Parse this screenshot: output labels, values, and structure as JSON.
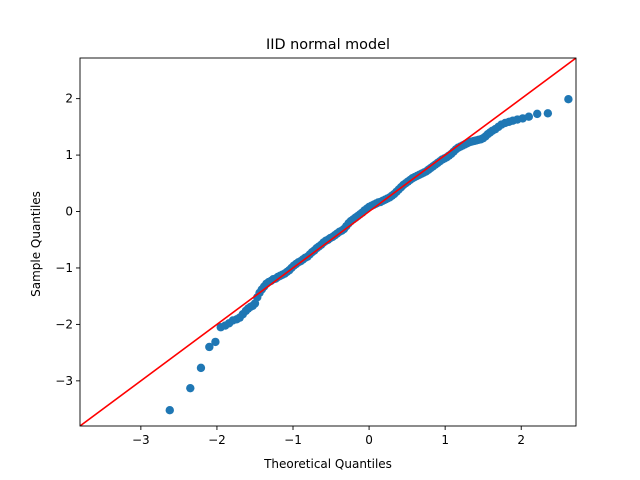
{
  "chart_data": {
    "type": "scatter",
    "title": "IID normal model",
    "xlabel": "Theoretical Quantiles",
    "ylabel": "Sample Quantiles",
    "xlim": [
      -3.8,
      2.72
    ],
    "ylim": [
      -3.8,
      2.72
    ],
    "xticks": [
      -3,
      -2,
      -1,
      0,
      1,
      2
    ],
    "yticks": [
      -3,
      -2,
      -1,
      0,
      1,
      2
    ],
    "grid": false,
    "colors": {
      "points": "#1f77b4",
      "reference_line": "#ff0000"
    },
    "series": [
      {
        "kind": "points",
        "x": [
          -2.62,
          -2.35,
          -2.21,
          -2.1,
          -2.02,
          -1.95,
          -1.89,
          -1.84,
          -1.79,
          -1.74,
          -1.7,
          -1.66,
          -1.62,
          -1.59,
          -1.56,
          -1.53,
          -1.5,
          -1.47,
          -1.44,
          -1.41,
          -1.38,
          -1.35,
          -1.32,
          -1.29,
          -1.26,
          -1.23,
          -1.2,
          -1.17,
          -1.14,
          -1.11,
          -1.08,
          -1.05,
          -1.02,
          -0.99,
          -0.96,
          -0.93,
          -0.9,
          -0.87,
          -0.84,
          -0.81,
          -0.78,
          -0.75,
          -0.72,
          -0.69,
          -0.66,
          -0.63,
          -0.6,
          -0.57,
          -0.54,
          -0.51,
          -0.48,
          -0.45,
          -0.42,
          -0.39,
          -0.36,
          -0.33,
          -0.3,
          -0.27,
          -0.24,
          -0.21,
          -0.18,
          -0.15,
          -0.12,
          -0.09,
          -0.06,
          -0.03,
          0.0,
          0.03,
          0.06,
          0.09,
          0.12,
          0.15,
          0.18,
          0.21,
          0.24,
          0.27,
          0.3,
          0.33,
          0.36,
          0.39,
          0.42,
          0.45,
          0.48,
          0.51,
          0.54,
          0.57,
          0.6,
          0.63,
          0.66,
          0.69,
          0.72,
          0.75,
          0.78,
          0.81,
          0.84,
          0.87,
          0.9,
          0.93,
          0.96,
          0.99,
          1.02,
          1.05,
          1.08,
          1.11,
          1.14,
          1.17,
          1.2,
          1.23,
          1.26,
          1.29,
          1.32,
          1.35,
          1.38,
          1.41,
          1.44,
          1.47,
          1.5,
          1.53,
          1.56,
          1.59,
          1.62,
          1.66,
          1.7,
          1.74,
          1.79,
          1.84,
          1.89,
          1.95,
          2.02,
          2.1,
          2.21,
          2.35,
          2.62
        ],
        "y": [
          -3.52,
          -3.13,
          -2.77,
          -2.4,
          -2.31,
          -2.05,
          -2.02,
          -1.98,
          -1.93,
          -1.91,
          -1.88,
          -1.82,
          -1.76,
          -1.72,
          -1.69,
          -1.67,
          -1.63,
          -1.52,
          -1.44,
          -1.38,
          -1.33,
          -1.28,
          -1.25,
          -1.23,
          -1.2,
          -1.19,
          -1.16,
          -1.14,
          -1.12,
          -1.1,
          -1.07,
          -1.04,
          -1.0,
          -0.96,
          -0.93,
          -0.9,
          -0.88,
          -0.85,
          -0.82,
          -0.8,
          -0.76,
          -0.72,
          -0.69,
          -0.65,
          -0.62,
          -0.59,
          -0.55,
          -0.52,
          -0.5,
          -0.47,
          -0.45,
          -0.42,
          -0.39,
          -0.36,
          -0.34,
          -0.31,
          -0.26,
          -0.21,
          -0.17,
          -0.14,
          -0.11,
          -0.08,
          -0.05,
          -0.02,
          0.02,
          0.05,
          0.08,
          0.1,
          0.12,
          0.14,
          0.16,
          0.17,
          0.19,
          0.21,
          0.23,
          0.25,
          0.28,
          0.31,
          0.35,
          0.39,
          0.43,
          0.47,
          0.5,
          0.53,
          0.56,
          0.59,
          0.61,
          0.63,
          0.65,
          0.67,
          0.69,
          0.71,
          0.74,
          0.77,
          0.8,
          0.83,
          0.86,
          0.89,
          0.92,
          0.94,
          0.96,
          0.99,
          1.02,
          1.06,
          1.1,
          1.13,
          1.15,
          1.17,
          1.19,
          1.21,
          1.23,
          1.24,
          1.25,
          1.26,
          1.27,
          1.28,
          1.3,
          1.33,
          1.37,
          1.4,
          1.43,
          1.46,
          1.5,
          1.54,
          1.57,
          1.59,
          1.61,
          1.63,
          1.65,
          1.68,
          1.73,
          1.74,
          1.99
        ]
      },
      {
        "kind": "line",
        "x": [
          -3.8,
          2.72
        ],
        "y": [
          -3.8,
          2.72
        ]
      }
    ]
  }
}
